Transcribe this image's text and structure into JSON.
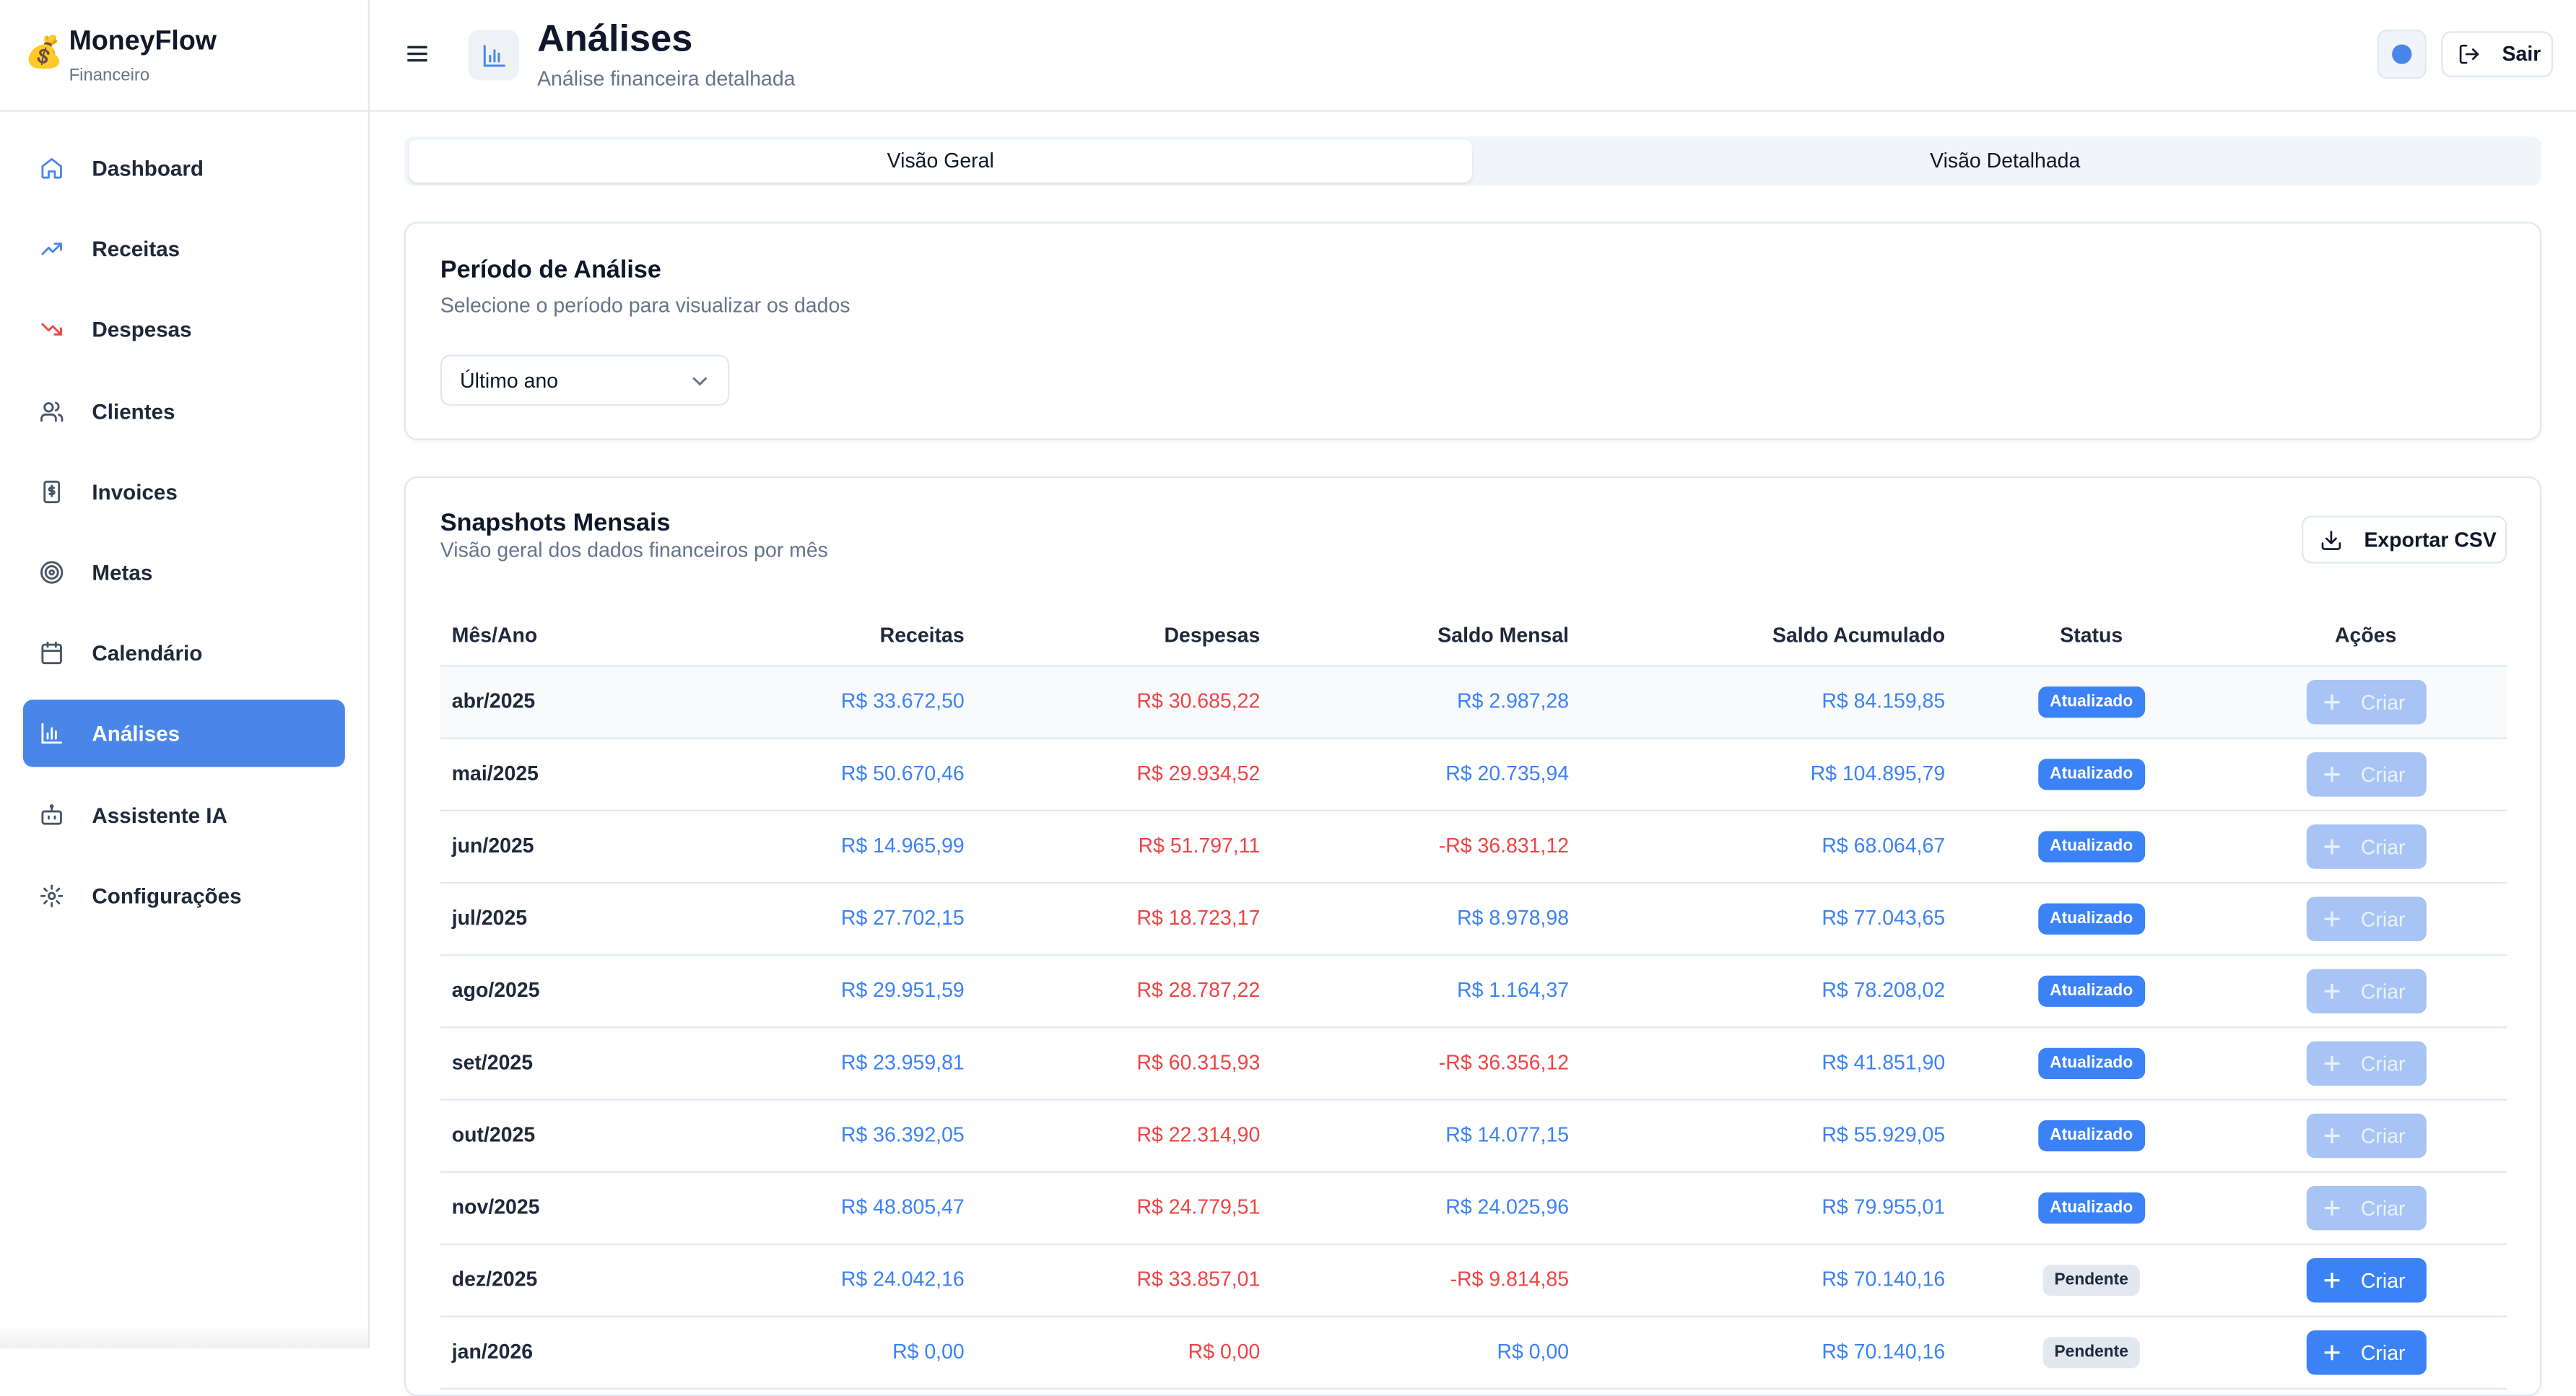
{
  "brand": {
    "logo": "💰",
    "name": "MoneyFlow",
    "subtitle": "Financeiro"
  },
  "sidebar": {
    "active_color": "#4a86e8",
    "items": [
      {
        "label": "Dashboard",
        "icon": "home-icon"
      },
      {
        "label": "Receitas",
        "icon": "trending-up-icon"
      },
      {
        "label": "Despesas",
        "icon": "trending-down-icon"
      },
      {
        "label": "Clientes",
        "icon": "users-icon"
      },
      {
        "label": "Invoices",
        "icon": "invoice-icon"
      },
      {
        "label": "Metas",
        "icon": "target-icon"
      },
      {
        "label": "Calendário",
        "icon": "calendar-icon"
      },
      {
        "label": "Análises",
        "icon": "bar-chart-icon",
        "active": true
      },
      {
        "label": "Assistente IA",
        "icon": "bot-icon"
      },
      {
        "label": "Configurações",
        "icon": "gear-icon"
      }
    ]
  },
  "header": {
    "title": "Análises",
    "subtitle": "Análise financeira detalhada",
    "logout_label": "Sair"
  },
  "tabs": [
    {
      "label": "Visão Geral",
      "active": true
    },
    {
      "label": "Visão Detalhada",
      "active": false
    }
  ],
  "period": {
    "title": "Período de Análise",
    "subtitle": "Selecione o período para visualizar os dados",
    "selected": "Último ano"
  },
  "snapshots": {
    "title": "Snapshots Mensais",
    "subtitle": "Visão geral dos dados financeiros por mês",
    "export_label": "Exportar CSV",
    "columns": [
      "Mês/Ano",
      "Receitas",
      "Despesas",
      "Saldo Mensal",
      "Saldo Acumulado",
      "Status",
      "Ações"
    ],
    "action_label": "Criar",
    "rows": [
      {
        "month": "abr/2025",
        "receitas": "R$ 33.672,50",
        "despesas": "R$ 30.685,22",
        "saldo": "R$ 2.987,28",
        "acumulado": "R$ 84.159,85",
        "status": "Atualizado"
      },
      {
        "month": "mai/2025",
        "receitas": "R$ 50.670,46",
        "despesas": "R$ 29.934,52",
        "saldo": "R$ 20.735,94",
        "acumulado": "R$ 104.895,79",
        "status": "Atualizado"
      },
      {
        "month": "jun/2025",
        "receitas": "R$ 14.965,99",
        "despesas": "R$ 51.797,11",
        "saldo": "-R$ 36.831,12",
        "acumulado": "R$ 68.064,67",
        "status": "Atualizado"
      },
      {
        "month": "jul/2025",
        "receitas": "R$ 27.702,15",
        "despesas": "R$ 18.723,17",
        "saldo": "R$ 8.978,98",
        "acumulado": "R$ 77.043,65",
        "status": "Atualizado"
      },
      {
        "month": "ago/2025",
        "receitas": "R$ 29.951,59",
        "despesas": "R$ 28.787,22",
        "saldo": "R$ 1.164,37",
        "acumulado": "R$ 78.208,02",
        "status": "Atualizado"
      },
      {
        "month": "set/2025",
        "receitas": "R$ 23.959,81",
        "despesas": "R$ 60.315,93",
        "saldo": "-R$ 36.356,12",
        "acumulado": "R$ 41.851,90",
        "status": "Atualizado"
      },
      {
        "month": "out/2025",
        "receitas": "R$ 36.392,05",
        "despesas": "R$ 22.314,90",
        "saldo": "R$ 14.077,15",
        "acumulado": "R$ 55.929,05",
        "status": "Atualizado"
      },
      {
        "month": "nov/2025",
        "receitas": "R$ 48.805,47",
        "despesas": "R$ 24.779,51",
        "saldo": "R$ 24.025,96",
        "acumulado": "R$ 79.955,01",
        "status": "Atualizado"
      },
      {
        "month": "dez/2025",
        "receitas": "R$ 24.042,16",
        "despesas": "R$ 33.857,01",
        "saldo": "-R$ 9.814,85",
        "acumulado": "R$ 70.140,16",
        "status": "Pendente"
      },
      {
        "month": "jan/2026",
        "receitas": "R$ 0,00",
        "despesas": "R$ 0,00",
        "saldo": "R$ 0,00",
        "acumulado": "R$ 70.140,16",
        "status": "Pendente"
      }
    ]
  }
}
